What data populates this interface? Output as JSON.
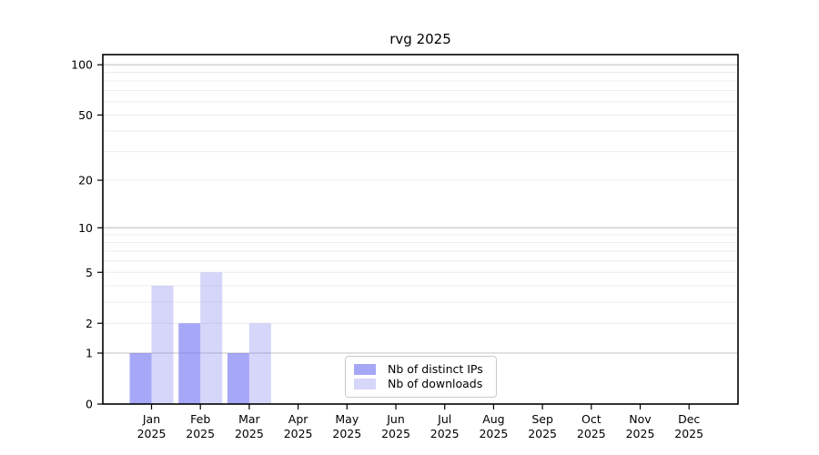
{
  "title": "rvg 2025",
  "chart_data": {
    "type": "bar",
    "title": "rvg 2025",
    "categories": [
      "Jan",
      "Feb",
      "Mar",
      "Apr",
      "May",
      "Jun",
      "Jul",
      "Aug",
      "Sep",
      "Oct",
      "Nov",
      "Dec"
    ],
    "category_year": "2025",
    "series": [
      {
        "name": "Nb of distinct IPs",
        "fill": "rgba(120,120,242,0.65)",
        "values": [
          1,
          2,
          1,
          0,
          0,
          0,
          0,
          0,
          0,
          0,
          0,
          0
        ]
      },
      {
        "name": "Nb of downloads",
        "fill": "rgba(120,120,242,0.30)",
        "values": [
          4,
          5,
          2,
          0,
          0,
          0,
          0,
          0,
          0,
          0,
          0,
          0
        ]
      }
    ],
    "yscale": "log1p",
    "ylim": [
      0,
      115
    ],
    "y_ticks": [
      0,
      1,
      2,
      5,
      10,
      20,
      50,
      100
    ],
    "y_major_gridlines": [
      1,
      10,
      100
    ],
    "y_minor_gridlines": [
      2,
      3,
      4,
      5,
      6,
      7,
      8,
      9,
      20,
      30,
      40,
      50,
      60,
      70,
      80,
      90
    ],
    "grid": true,
    "legend_position": "inside-bottom-center",
    "xlabel": "",
    "ylabel": ""
  },
  "colors": {
    "background": "#ffffff",
    "axis": "#000000",
    "tick_label": "#000000",
    "major_grid": "#c3c3c3",
    "minor_grid": "#ececec",
    "legend_border": "#cbcbcb"
  }
}
